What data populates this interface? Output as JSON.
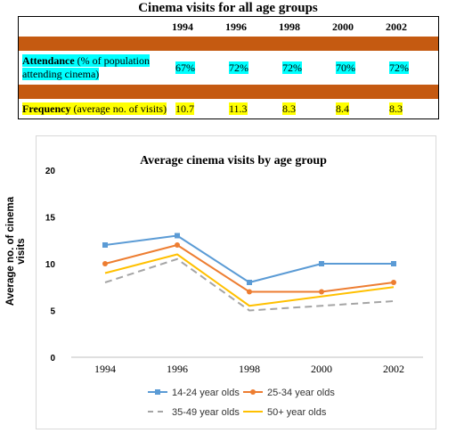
{
  "page": {
    "title": "Cinema visits for all age groups"
  },
  "table": {
    "years": [
      "1994",
      "1996",
      "1998",
      "2000",
      "2002"
    ],
    "attendance": {
      "label_bold": "Attendance",
      "label_rest": " (% of population",
      "label_line2": "attending cinema)",
      "values": [
        "67%",
        "72%",
        "72%",
        "70%",
        "72%"
      ]
    },
    "frequency": {
      "label_bold": "Frequency",
      "label_rest": " (average no. of visits)",
      "values": [
        "10.7",
        "11.3",
        "8.3",
        "8.4",
        "8.3"
      ]
    },
    "colors": {
      "band": "#c55a11",
      "cyan": "#00ffff",
      "yellow": "#ffff00"
    }
  },
  "chart_data": {
    "type": "line",
    "title": "Average cinema visits by age group",
    "xlabel": "",
    "ylabel": "Average no. of cinema visits",
    "categories": [
      "1994",
      "1996",
      "1998",
      "2000",
      "2002"
    ],
    "yticks": [
      "0",
      "5",
      "10",
      "15",
      "20"
    ],
    "ylim": [
      0,
      20
    ],
    "grid": false,
    "legend_position": "bottom",
    "series": [
      {
        "name": "14-24 year olds",
        "values": [
          12,
          13,
          8,
          10,
          10
        ],
        "color": "#5b9bd5",
        "style": "solid",
        "marker": "square"
      },
      {
        "name": "25-34 year olds",
        "values": [
          10,
          12,
          7,
          7,
          8
        ],
        "color": "#ed7d31",
        "style": "solid",
        "marker": "circle"
      },
      {
        "name": "35-49 year olds",
        "values": [
          8,
          10.5,
          5,
          5.5,
          6
        ],
        "color": "#a5a5a5",
        "style": "dashed",
        "marker": "none"
      },
      {
        "name": "50+ year olds",
        "values": [
          9,
          11,
          5.5,
          6.5,
          7.5
        ],
        "color": "#ffc000",
        "style": "solid",
        "marker": "none"
      }
    ]
  }
}
